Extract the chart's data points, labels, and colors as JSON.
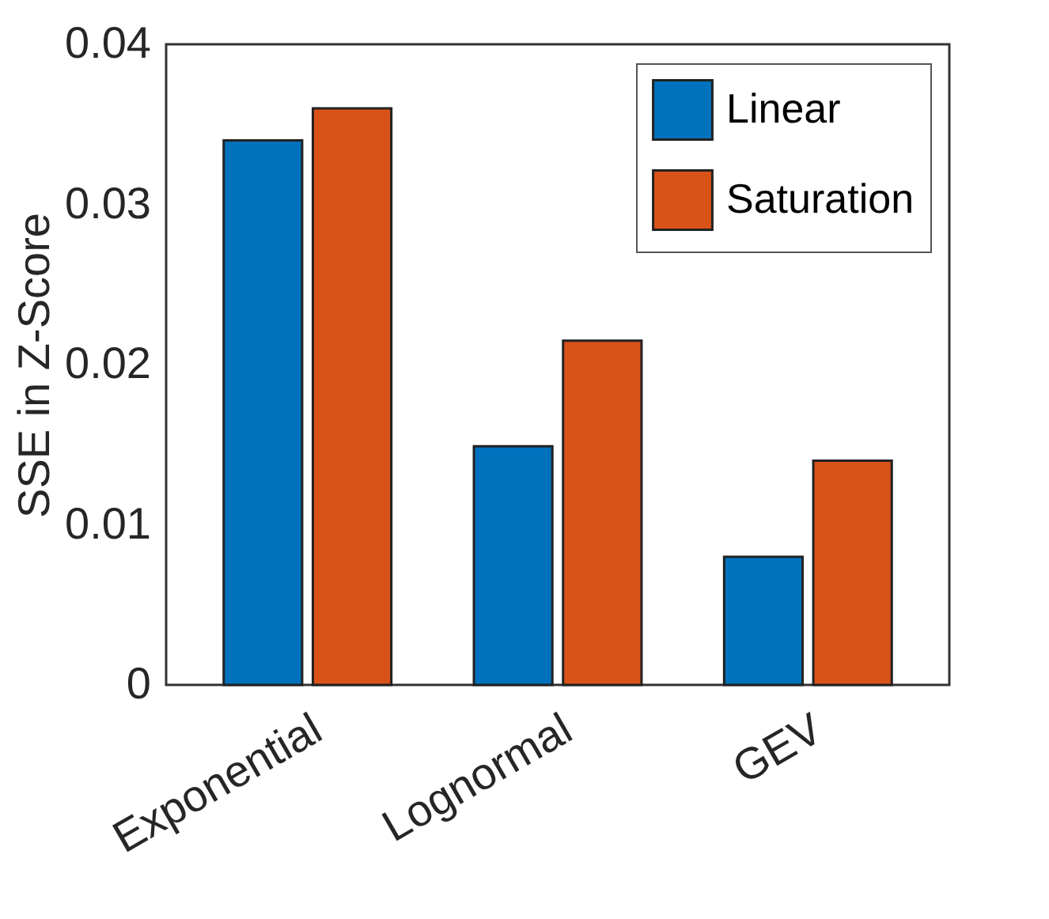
{
  "chart_data": {
    "type": "bar",
    "ylabel": "SSE in Z-Score",
    "categories": [
      "Exponential",
      "Lognormal",
      "GEV"
    ],
    "series": [
      {
        "name": "Linear",
        "color": "#0072bd",
        "values": [
          0.034,
          0.0149,
          0.008
        ]
      },
      {
        "name": "Saturation",
        "color": "#d95319",
        "values": [
          0.036,
          0.0215,
          0.014
        ]
      }
    ],
    "ylim": [
      0,
      0.04
    ],
    "yticks": [
      0,
      0.01,
      0.02,
      0.03,
      0.04
    ],
    "grid": false,
    "legend": "top right"
  }
}
